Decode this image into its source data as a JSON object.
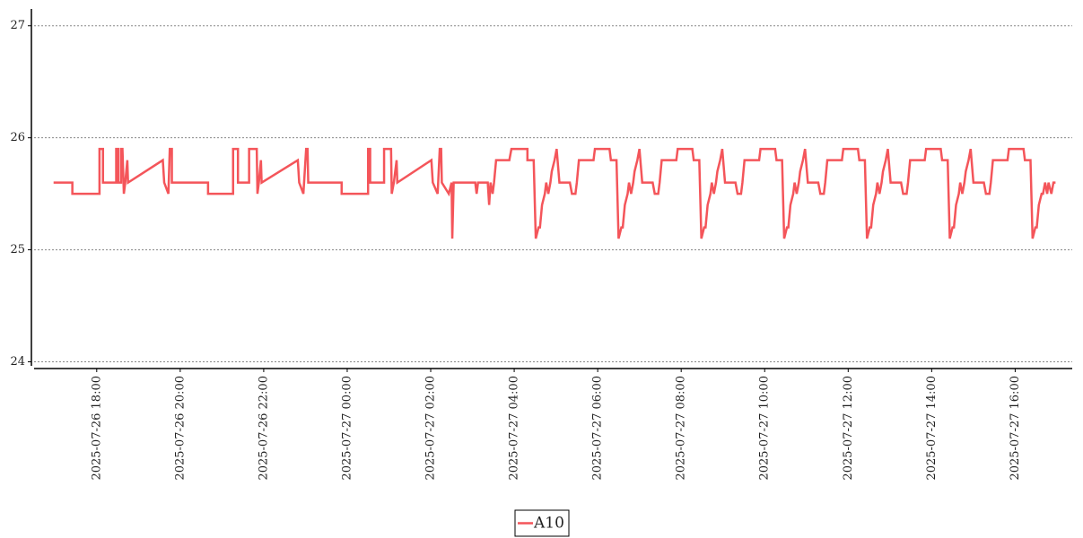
{
  "chart_data": {
    "type": "line",
    "x": [
      "2025-07-26 16:58",
      "2025-07-26 17:25",
      "2025-07-26 17:25",
      "2025-07-26 18:04",
      "2025-07-26 18:04",
      "2025-07-26 18:09",
      "2025-07-26 18:09",
      "2025-07-26 18:28",
      "2025-07-26 18:28",
      "2025-07-26 18:31",
      "2025-07-26 18:31",
      "2025-07-26 18:35",
      "2025-07-26 18:35",
      "2025-07-26 18:37",
      "2025-07-26 18:39",
      "2025-07-26 18:41",
      "2025-07-26 18:44",
      "2025-07-26 18:45",
      "2025-07-26 19:35",
      "2025-07-26 19:37",
      "2025-07-26 19:43",
      "2025-07-26 19:45",
      "2025-07-26 19:48",
      "2025-07-26 19:48",
      "2025-07-26 20:40",
      "2025-07-26 20:40",
      "2025-07-26 21:16",
      "2025-07-26 21:16",
      "2025-07-26 21:23",
      "2025-07-26 21:23",
      "2025-07-26 21:39",
      "2025-07-26 21:39",
      "2025-07-26 21:50",
      "2025-07-26 21:51",
      "2025-07-26 21:53",
      "2025-07-26 21:56",
      "2025-07-26 21:57",
      "2025-07-26 22:49",
      "2025-07-26 22:51",
      "2025-07-26 22:57",
      "2025-07-26 23:01",
      "2025-07-26 23:03",
      "2025-07-26 23:04",
      "2025-07-26 23:52",
      "2025-07-26 23:52",
      "2025-07-27 00:30",
      "2025-07-27 00:30",
      "2025-07-27 00:33",
      "2025-07-27 00:33",
      "2025-07-27 00:53",
      "2025-07-27 00:53",
      "2025-07-27 01:03",
      "2025-07-27 01:04",
      "2025-07-27 01:07",
      "2025-07-27 01:11",
      "2025-07-27 01:12",
      "2025-07-27 02:01",
      "2025-07-27 02:03",
      "2025-07-27 02:10",
      "2025-07-27 02:13",
      "2025-07-27 02:15",
      "2025-07-27 02:16",
      "2025-07-27 02:26",
      "2025-07-27 02:30",
      "2025-07-27 02:31",
      "2025-07-27 02:33",
      "2025-07-27 03:04",
      "2025-07-27 03:06",
      "2025-07-27 03:08",
      "2025-07-27 03:22",
      "2025-07-27 03:24",
      "2025-07-27 03:26",
      "2025-07-27 03:29",
      "2025-07-27 03:31",
      "2025-07-27 03:34",
      "2025-07-27 03:53",
      "2025-07-27 03:56",
      "2025-07-27 04:19",
      "2025-07-27 04:19",
      "2025-07-27 04:28",
      "2025-07-27 04:31",
      "2025-07-27 04:35",
      "2025-07-27 04:37",
      "2025-07-27 04:40",
      "2025-07-27 04:44",
      "2025-07-27 04:46",
      "2025-07-27 04:49",
      "2025-07-27 04:52",
      "2025-07-27 04:54",
      "2025-07-27 04:58",
      "2025-07-27 05:01",
      "2025-07-27 05:05",
      "2025-07-27 05:20",
      "2025-07-27 05:23",
      "2025-07-27 05:28",
      "2025-07-27 05:30",
      "2025-07-27 05:33",
      "2025-07-27 05:54",
      "2025-07-27 05:56",
      "2025-07-27 06:17",
      "2025-07-27 06:19",
      "2025-07-27 06:27",
      "2025-07-27 06:30",
      "2025-07-27 06:34",
      "2025-07-27 06:36",
      "2025-07-27 06:39",
      "2025-07-27 06:43",
      "2025-07-27 06:45",
      "2025-07-27 06:48",
      "2025-07-27 06:51",
      "2025-07-27 06:53",
      "2025-07-27 06:57",
      "2025-07-27 07:00",
      "2025-07-27 07:04",
      "2025-07-27 07:19",
      "2025-07-27 07:22",
      "2025-07-27 07:27",
      "2025-07-27 07:29",
      "2025-07-27 07:32",
      "2025-07-27 07:53",
      "2025-07-27 07:55",
      "2025-07-27 08:16",
      "2025-07-27 08:18",
      "2025-07-27 08:26",
      "2025-07-27 08:29",
      "2025-07-27 08:33",
      "2025-07-27 08:35",
      "2025-07-27 08:38",
      "2025-07-27 08:42",
      "2025-07-27 08:44",
      "2025-07-27 08:47",
      "2025-07-27 08:50",
      "2025-07-27 08:52",
      "2025-07-27 08:56",
      "2025-07-27 08:59",
      "2025-07-27 09:03",
      "2025-07-27 09:18",
      "2025-07-27 09:21",
      "2025-07-27 09:26",
      "2025-07-27 09:28",
      "2025-07-27 09:31",
      "2025-07-27 09:52",
      "2025-07-27 09:54",
      "2025-07-27 10:15",
      "2025-07-27 10:17",
      "2025-07-27 10:25",
      "2025-07-27 10:28",
      "2025-07-27 10:32",
      "2025-07-27 10:34",
      "2025-07-27 10:37",
      "2025-07-27 10:41",
      "2025-07-27 10:43",
      "2025-07-27 10:46",
      "2025-07-27 10:49",
      "2025-07-27 10:51",
      "2025-07-27 10:55",
      "2025-07-27 10:58",
      "2025-07-27 11:02",
      "2025-07-27 11:17",
      "2025-07-27 11:20",
      "2025-07-27 11:25",
      "2025-07-27 11:27",
      "2025-07-27 11:30",
      "2025-07-27 11:51",
      "2025-07-27 11:53",
      "2025-07-27 12:14",
      "2025-07-27 12:16",
      "2025-07-27 12:24",
      "2025-07-27 12:27",
      "2025-07-27 12:31",
      "2025-07-27 12:33",
      "2025-07-27 12:36",
      "2025-07-27 12:40",
      "2025-07-27 12:42",
      "2025-07-27 12:45",
      "2025-07-27 12:48",
      "2025-07-27 12:50",
      "2025-07-27 12:54",
      "2025-07-27 12:57",
      "2025-07-27 13:01",
      "2025-07-27 13:16",
      "2025-07-27 13:19",
      "2025-07-27 13:24",
      "2025-07-27 13:26",
      "2025-07-27 13:29",
      "2025-07-27 13:50",
      "2025-07-27 13:52",
      "2025-07-27 14:13",
      "2025-07-27 14:15",
      "2025-07-27 14:23",
      "2025-07-27 14:26",
      "2025-07-27 14:30",
      "2025-07-27 14:32",
      "2025-07-27 14:35",
      "2025-07-27 14:39",
      "2025-07-27 14:41",
      "2025-07-27 14:44",
      "2025-07-27 14:47",
      "2025-07-27 14:49",
      "2025-07-27 14:53",
      "2025-07-27 14:56",
      "2025-07-27 15:00",
      "2025-07-27 15:15",
      "2025-07-27 15:18",
      "2025-07-27 15:23",
      "2025-07-27 15:25",
      "2025-07-27 15:28",
      "2025-07-27 15:49",
      "2025-07-27 15:51",
      "2025-07-27 16:12",
      "2025-07-27 16:14",
      "2025-07-27 16:22",
      "2025-07-27 16:25",
      "2025-07-27 16:29",
      "2025-07-27 16:31",
      "2025-07-27 16:34",
      "2025-07-27 16:38",
      "2025-07-27 16:40",
      "2025-07-27 16:43",
      "2025-07-27 16:46",
      "2025-07-27 16:48",
      "2025-07-27 16:52",
      "2025-07-27 16:55",
      "2025-07-27 16:58"
    ],
    "series": [
      {
        "name": "A10",
        "color": "#f4555a",
        "values": [
          25.6,
          25.6,
          25.5,
          25.5,
          25.9,
          25.9,
          25.6,
          25.6,
          25.9,
          25.9,
          25.6,
          25.6,
          25.9,
          25.9,
          25.5,
          25.6,
          25.8,
          25.6,
          25.8,
          25.6,
          25.5,
          25.9,
          25.9,
          25.6,
          25.6,
          25.5,
          25.5,
          25.9,
          25.9,
          25.6,
          25.6,
          25.9,
          25.9,
          25.5,
          25.6,
          25.8,
          25.6,
          25.8,
          25.6,
          25.5,
          25.9,
          25.9,
          25.6,
          25.6,
          25.5,
          25.5,
          25.9,
          25.9,
          25.6,
          25.6,
          25.9,
          25.9,
          25.5,
          25.6,
          25.8,
          25.6,
          25.8,
          25.6,
          25.5,
          25.9,
          25.9,
          25.6,
          25.5,
          25.6,
          25.1,
          25.6,
          25.6,
          25.5,
          25.6,
          25.6,
          25.4,
          25.6,
          25.5,
          25.6,
          25.8,
          25.8,
          25.9,
          25.9,
          25.8,
          25.8,
          25.1,
          25.2,
          25.2,
          25.4,
          25.5,
          25.6,
          25.5,
          25.6,
          25.7,
          25.8,
          25.9,
          25.6,
          25.6,
          25.5,
          25.5,
          25.6,
          25.8,
          25.8,
          25.9,
          25.9,
          25.8,
          25.8,
          25.1,
          25.2,
          25.2,
          25.4,
          25.5,
          25.6,
          25.5,
          25.6,
          25.7,
          25.8,
          25.9,
          25.6,
          25.6,
          25.5,
          25.5,
          25.6,
          25.8,
          25.8,
          25.9,
          25.9,
          25.8,
          25.8,
          25.1,
          25.2,
          25.2,
          25.4,
          25.5,
          25.6,
          25.5,
          25.6,
          25.7,
          25.8,
          25.9,
          25.6,
          25.6,
          25.5,
          25.5,
          25.6,
          25.8,
          25.8,
          25.9,
          25.9,
          25.8,
          25.8,
          25.1,
          25.2,
          25.2,
          25.4,
          25.5,
          25.6,
          25.5,
          25.6,
          25.7,
          25.8,
          25.9,
          25.6,
          25.6,
          25.5,
          25.5,
          25.6,
          25.8,
          25.8,
          25.9,
          25.9,
          25.8,
          25.8,
          25.1,
          25.2,
          25.2,
          25.4,
          25.5,
          25.6,
          25.5,
          25.6,
          25.7,
          25.8,
          25.9,
          25.6,
          25.6,
          25.5,
          25.5,
          25.6,
          25.8,
          25.8,
          25.9,
          25.9,
          25.8,
          25.8,
          25.1,
          25.2,
          25.2,
          25.4,
          25.5,
          25.6,
          25.5,
          25.6,
          25.7,
          25.8,
          25.9,
          25.6,
          25.6,
          25.5,
          25.5,
          25.6,
          25.8,
          25.8,
          25.9,
          25.9,
          25.8,
          25.8,
          25.1,
          25.2,
          25.2,
          25.4,
          25.5,
          25.5,
          25.6,
          25.5,
          25.6,
          25.5,
          25.6,
          25.6
        ]
      }
    ],
    "xlim": [
      "2025-07-26 16:30",
      "2025-07-27 17:22"
    ],
    "xticks": [
      "2025-07-26 18:00",
      "2025-07-26 20:00",
      "2025-07-26 22:00",
      "2025-07-27 00:00",
      "2025-07-27 02:00",
      "2025-07-27 04:00",
      "2025-07-27 06:00",
      "2025-07-27 08:00",
      "2025-07-27 10:00",
      "2025-07-27 12:00",
      "2025-07-27 14:00",
      "2025-07-27 16:00"
    ],
    "ylim": [
      23.94,
      27.15
    ],
    "yticks": [
      24,
      25,
      26,
      27
    ],
    "grid": true,
    "legend": "bottom"
  }
}
